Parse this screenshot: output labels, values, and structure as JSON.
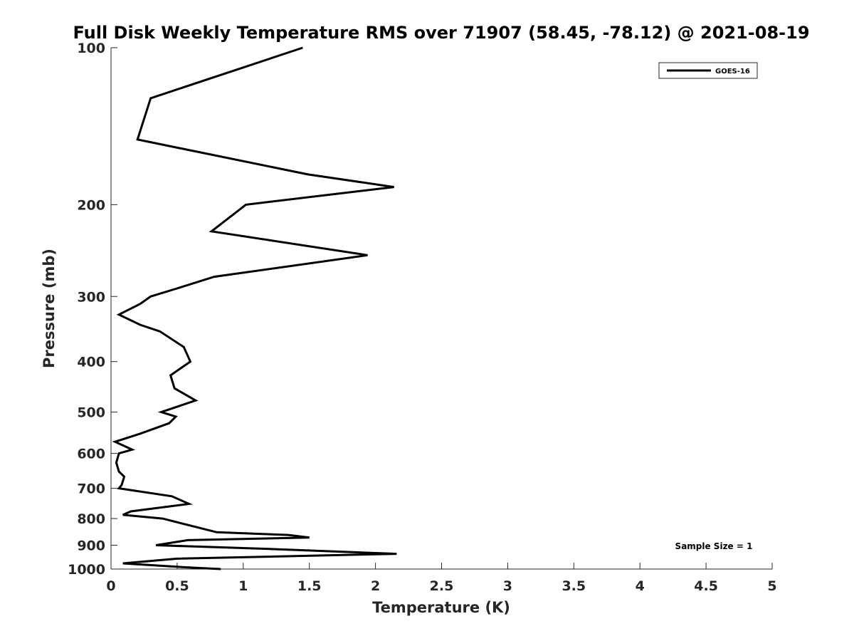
{
  "chart_data": {
    "type": "line",
    "title": "Full Disk Weekly Temperature RMS over 71907 (58.45, -78.12) @ 2021-08-19",
    "xlabel": "Temperature (K)",
    "ylabel": "Pressure (mb)",
    "xlim": [
      0,
      5
    ],
    "ylim": [
      100,
      1000
    ],
    "y_scale": "log",
    "y_reversed": true,
    "x_ticks": [
      "0",
      "0.5",
      "1",
      "1.5",
      "2",
      "2.5",
      "3",
      "3.5",
      "4",
      "4.5",
      "5"
    ],
    "y_ticks": [
      "100",
      "200",
      "300",
      "400",
      "500",
      "600",
      "700",
      "800",
      "900",
      "1000"
    ],
    "grid": false,
    "legend_position": "top-right",
    "annotation": "Sample Size = 1",
    "series": [
      {
        "name": "GOES-16",
        "color": "#000000",
        "points": [
          [
            1.45,
            100
          ],
          [
            0.3,
            125
          ],
          [
            0.2,
            150
          ],
          [
            1.49,
            175
          ],
          [
            2.14,
            185
          ],
          [
            1.02,
            200
          ],
          [
            0.76,
            225
          ],
          [
            1.94,
            250
          ],
          [
            0.78,
            275
          ],
          [
            0.49,
            290
          ],
          [
            0.3,
            300
          ],
          [
            0.22,
            310
          ],
          [
            0.06,
            325
          ],
          [
            0.22,
            340
          ],
          [
            0.37,
            350
          ],
          [
            0.55,
            375
          ],
          [
            0.6,
            400
          ],
          [
            0.45,
            425
          ],
          [
            0.48,
            450
          ],
          [
            0.64,
            475
          ],
          [
            0.38,
            500
          ],
          [
            0.49,
            510
          ],
          [
            0.44,
            525
          ],
          [
            0.22,
            550
          ],
          [
            0.03,
            570
          ],
          [
            0.16,
            590
          ],
          [
            0.06,
            600
          ],
          [
            0.04,
            625
          ],
          [
            0.06,
            650
          ],
          [
            0.1,
            665
          ],
          [
            0.08,
            690
          ],
          [
            0.06,
            700
          ],
          [
            0.46,
            725
          ],
          [
            0.59,
            750
          ],
          [
            0.15,
            775
          ],
          [
            0.09,
            787
          ],
          [
            0.39,
            800
          ],
          [
            0.8,
            850
          ],
          [
            1.34,
            860
          ],
          [
            1.5,
            870
          ],
          [
            0.58,
            880
          ],
          [
            0.34,
            900
          ],
          [
            1.2,
            915
          ],
          [
            2.16,
            935
          ],
          [
            0.5,
            955
          ],
          [
            0.09,
            975
          ],
          [
            0.5,
            990
          ],
          [
            0.83,
            1000
          ]
        ]
      }
    ]
  }
}
